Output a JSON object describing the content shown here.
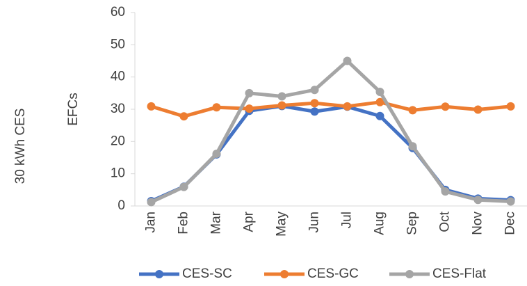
{
  "chart_data": {
    "type": "line",
    "row_label": "30 kWh CES",
    "y_label": "EFCs",
    "categories": [
      "Jan",
      "Feb",
      "Mar",
      "Apr",
      "May",
      "Jun",
      "Jul",
      "Aug",
      "Sep",
      "Oct",
      "Nov",
      "Dec"
    ],
    "series": [
      {
        "name": "CES-SC",
        "color": "#4472c4",
        "values": [
          1.5,
          6,
          16,
          29.5,
          31,
          29.3,
          30.8,
          27.9,
          18,
          5,
          2.3,
          1.8
        ]
      },
      {
        "name": "CES-GC",
        "color": "#ed7d31",
        "values": [
          30.9,
          27.8,
          30.6,
          30.2,
          31.2,
          31.9,
          30.9,
          32.2,
          29.7,
          30.8,
          29.9,
          30.9
        ]
      },
      {
        "name": "CES-Flat",
        "color": "#a5a5a5",
        "values": [
          1.2,
          5.9,
          16.2,
          35,
          34,
          36,
          45,
          35.4,
          18.5,
          4.5,
          1.9,
          1.4
        ]
      }
    ],
    "ylim": [
      0,
      60
    ],
    "yticks": [
      0,
      10,
      20,
      30,
      40,
      50,
      60
    ],
    "grid": false,
    "legend": "bottom"
  }
}
